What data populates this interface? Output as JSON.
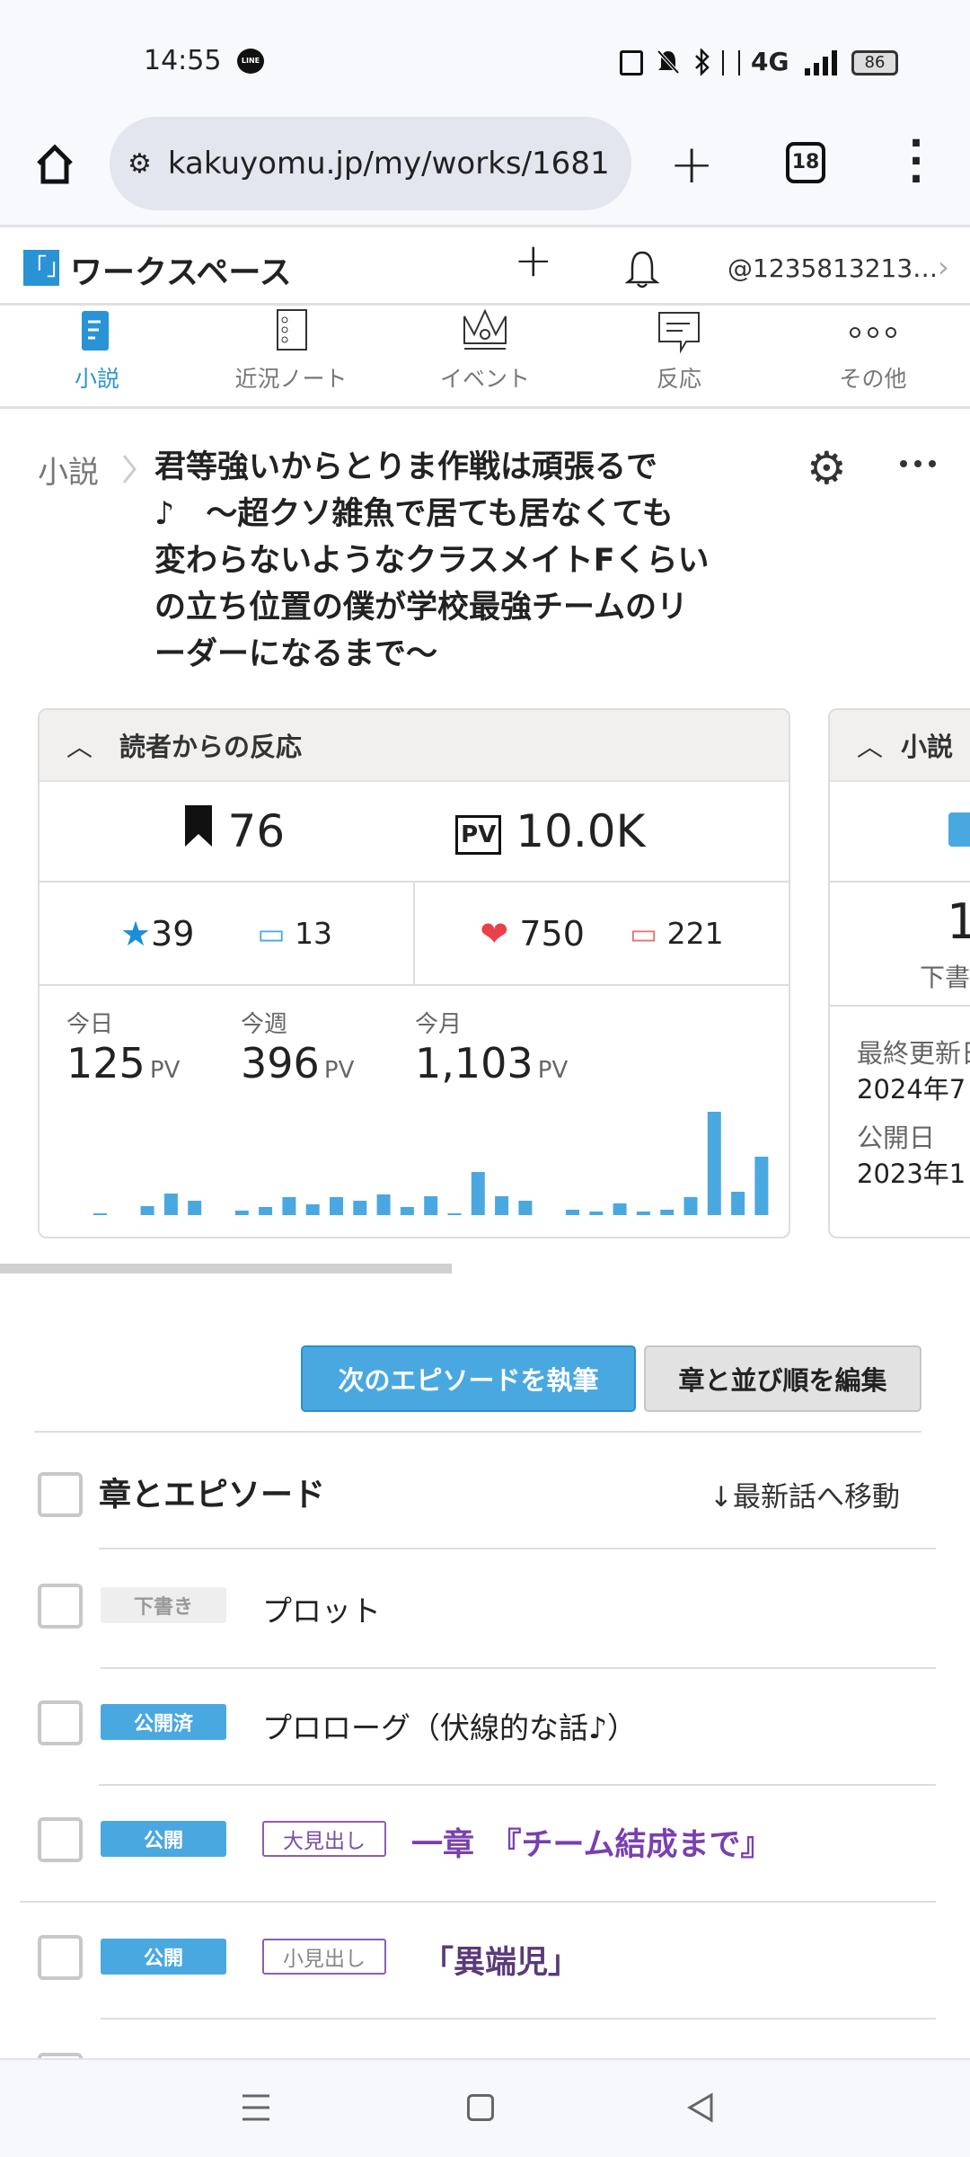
{
  "status_bar": {
    "time": "14:55",
    "notification_app": "LINE",
    "network": "4G",
    "battery": "86"
  },
  "browser": {
    "url": "kakuyomu.jp/my/works/1681",
    "tab_count": "18"
  },
  "header": {
    "title": "ワークスペース",
    "account": "@1235813213…"
  },
  "tabs": [
    {
      "label": "小説",
      "active": true
    },
    {
      "label": "近況ノート"
    },
    {
      "label": "イベント"
    },
    {
      "label": "反応"
    },
    {
      "label": "その他"
    }
  ],
  "breadcrumb": "小説",
  "work_title": [
    "君等強いからとりま作戦は頑張るで",
    "♪　～超クソ雑魚で居ても居なくても",
    "変わらないようなクラスメイトFくらい",
    "の立ち位置の僕が学校最強チームのリ",
    "ーダーになるまで～"
  ],
  "reactions_card": {
    "title": "読者からの反応",
    "followers": "76",
    "pv_total": "10.0K",
    "stars": "39",
    "reviews": "13",
    "hearts": "750",
    "comments": "221",
    "today_label": "今日",
    "today_value": "125",
    "week_label": "今週",
    "week_value": "396",
    "month_label": "今月",
    "month_value": "1,103",
    "pv_unit": "PV"
  },
  "info_card": {
    "title": "小説",
    "count_partial": "1",
    "draft_label_partial": "下書",
    "updated_label": "最終更新日",
    "updated_value": "2024年7",
    "published_label": "公開日",
    "published_value": "2023年1"
  },
  "chart_data": {
    "type": "bar",
    "values": [
      2,
      0,
      10,
      24,
      16,
      0,
      5,
      9,
      20,
      12,
      20,
      16,
      23,
      9,
      21,
      2,
      48,
      21,
      16,
      0,
      6,
      4,
      13,
      4,
      6,
      20,
      115,
      26,
      65
    ],
    "color": "#4aa8e0",
    "xlabel": "",
    "ylabel": ""
  },
  "actions": {
    "write_next": "次のエピソードを執筆",
    "edit_order": "章と並び順を編集"
  },
  "episodes": {
    "heading": "章とエピソード",
    "jump_latest": "↓最新話へ移動",
    "items": [
      {
        "status": "下書き",
        "status_type": "draft",
        "title": "プロット"
      },
      {
        "status": "公開済",
        "status_type": "public",
        "title": "プロローグ（伏線的な話♪）"
      },
      {
        "status": "公開",
        "status_type": "public",
        "tag": "大見出し",
        "title": "一章　『チーム結成まで』",
        "title_color": "#7a3fb0"
      },
      {
        "status": "公開",
        "status_type": "public",
        "tag": "小見出し",
        "title": "「異端児」",
        "title_color": "#5a3a78"
      }
    ]
  },
  "colors": {
    "accent": "#4aa8e0",
    "heart": "#e9404a",
    "comment_red": "#e57070",
    "purple": "#7a3fb0"
  }
}
